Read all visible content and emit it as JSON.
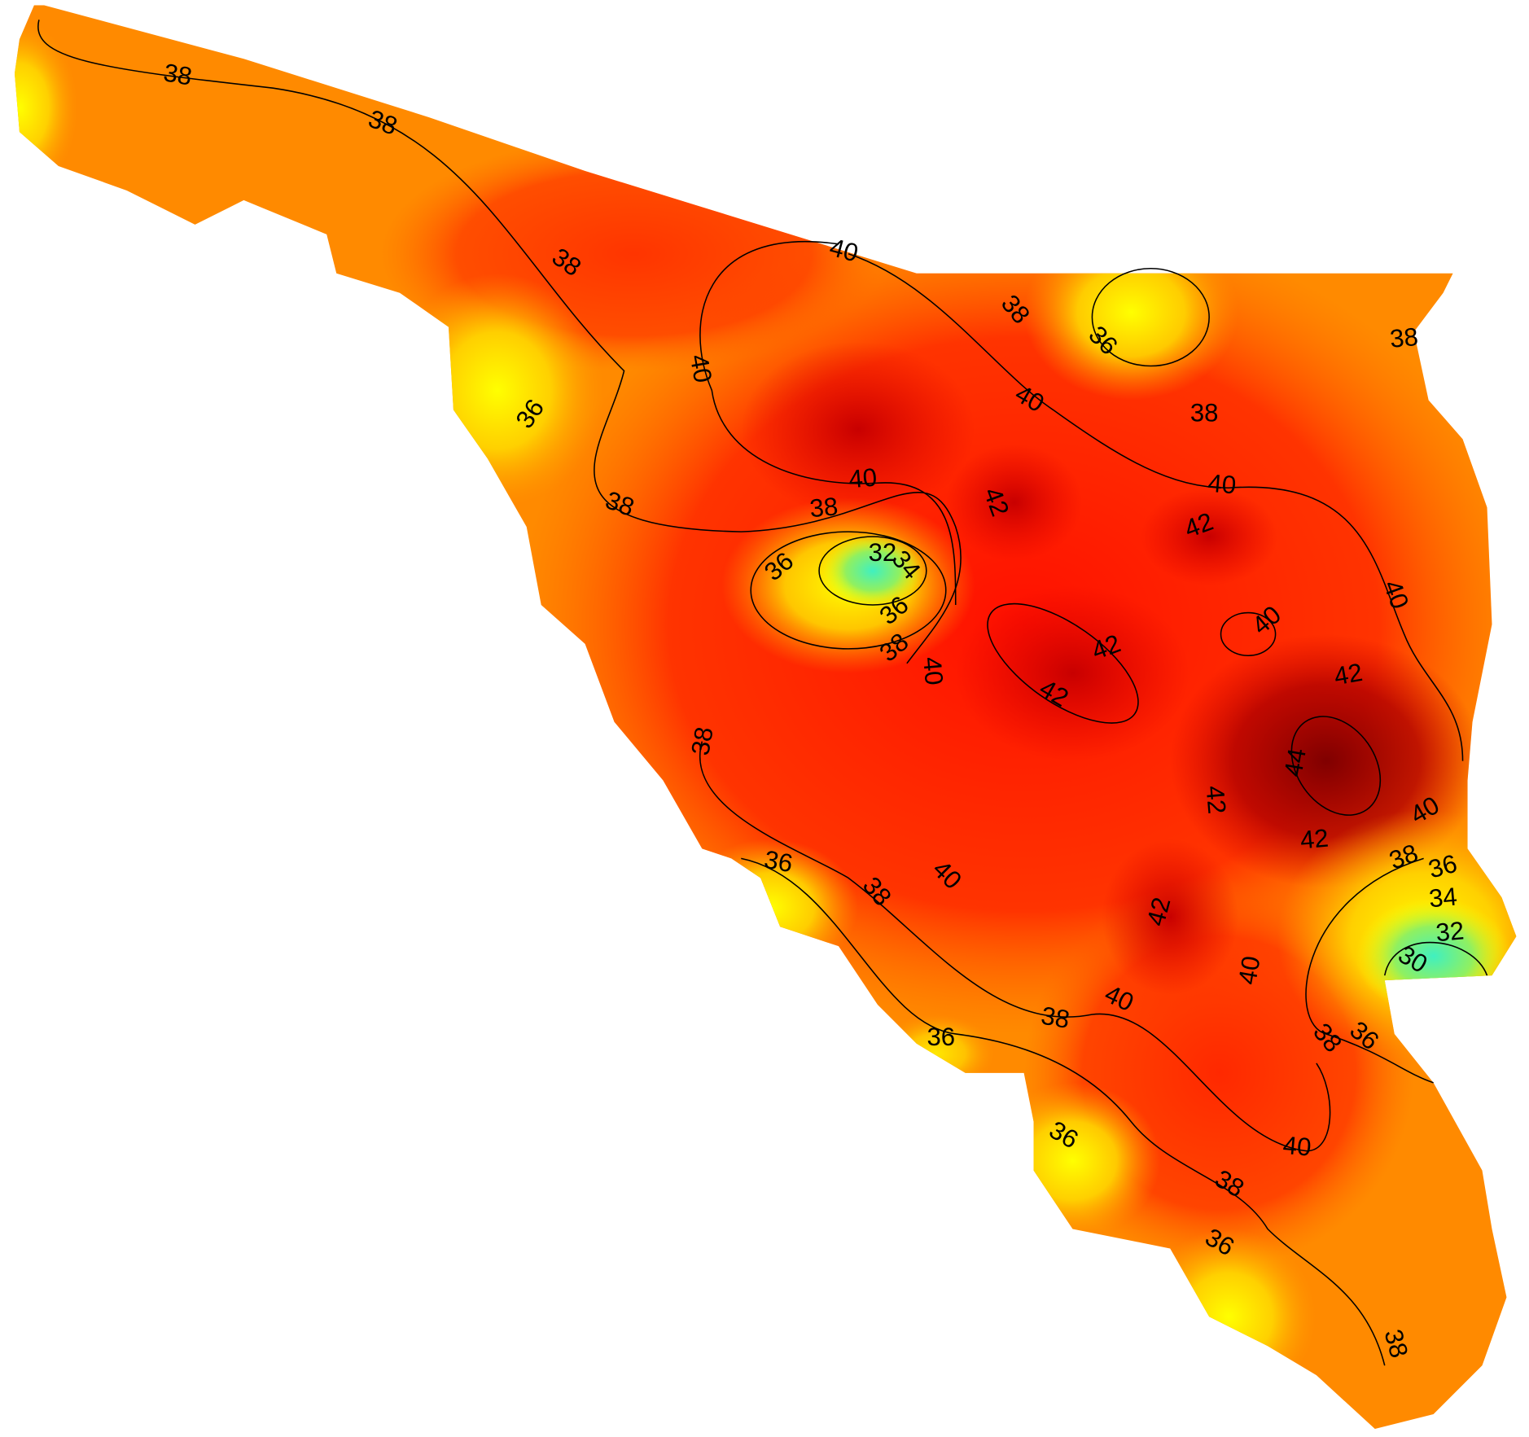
{
  "map": {
    "contour_labels": [
      38,
      38,
      38,
      36,
      40,
      40,
      38,
      36,
      40,
      38,
      38,
      40,
      38,
      38,
      42,
      42,
      40,
      36,
      32,
      34,
      36,
      38,
      40,
      42,
      42,
      42,
      40,
      40,
      44,
      42,
      42,
      40,
      38,
      36,
      38,
      40,
      42,
      38,
      36,
      34,
      32,
      30,
      40,
      40,
      38,
      36,
      38,
      36,
      36,
      40,
      38,
      36,
      38
    ]
  }
}
